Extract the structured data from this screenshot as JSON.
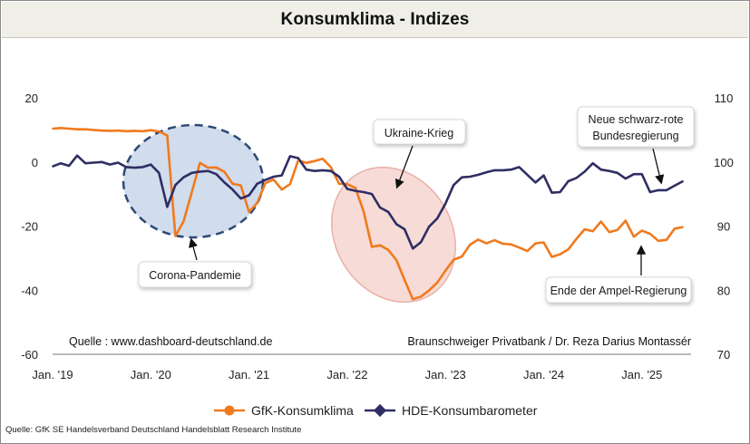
{
  "title": "Konsumklima - Indizes",
  "colors": {
    "gfk": "#f07a1e",
    "hde": "#2f2e63",
    "circle_fill": "#c9d6ea",
    "circle_stroke": "#2c4a75",
    "oval_fill": "#f4cfc8",
    "oval_stroke": "#e8b2aa"
  },
  "chart_data": {
    "type": "line",
    "x_tick_labels": [
      "Jan. '19",
      "Jan. '20",
      "Jan. '21",
      "Jan. '22",
      "Jan. '23",
      "Jan. '24",
      "Jan. '25"
    ],
    "x_range": [
      2019.0,
      2025.5
    ],
    "y_left": {
      "ticks": [
        "20",
        "0",
        "-20",
        "-40",
        "-60"
      ],
      "range": [
        -60,
        20
      ]
    },
    "y_right": {
      "ticks": [
        "110",
        "100",
        "90",
        "80",
        "70"
      ],
      "range": [
        70,
        110
      ]
    },
    "grid": false,
    "legend": "bottom",
    "series": [
      {
        "name": "GfK-Konsumklima",
        "axis": "left",
        "x": [
          2019.0,
          2019.083,
          2019.167,
          2019.25,
          2019.333,
          2019.417,
          2019.5,
          2019.583,
          2019.667,
          2019.75,
          2019.833,
          2019.917,
          2020.0,
          2020.083,
          2020.167,
          2020.25,
          2020.333,
          2020.417,
          2020.5,
          2020.583,
          2020.667,
          2020.75,
          2020.833,
          2020.917,
          2021.0,
          2021.083,
          2021.167,
          2021.25,
          2021.333,
          2021.417,
          2021.5,
          2021.583,
          2021.667,
          2021.75,
          2021.833,
          2021.917,
          2022.0,
          2022.083,
          2022.167,
          2022.25,
          2022.333,
          2022.417,
          2022.5,
          2022.583,
          2022.667,
          2022.75,
          2022.833,
          2022.917,
          2023.0,
          2023.083,
          2023.167,
          2023.25,
          2023.333,
          2023.417,
          2023.5,
          2023.583,
          2023.667,
          2023.75,
          2023.833,
          2023.917,
          2024.0,
          2024.083,
          2024.167,
          2024.25,
          2024.333,
          2024.417,
          2024.5,
          2024.583,
          2024.667,
          2024.75,
          2024.833,
          2024.917,
          2025.0,
          2025.083,
          2025.167,
          2025.25,
          2025.333,
          2025.417
        ],
        "y": [
          10.4,
          10.6,
          10.4,
          10.2,
          10.2,
          10.0,
          9.8,
          9.7,
          9.8,
          9.6,
          9.7,
          9.6,
          9.9,
          9.5,
          8.3,
          -23.1,
          -18.6,
          -9.4,
          -0.3,
          -1.8,
          -1.7,
          -3.1,
          -6.8,
          -7.3,
          -15.6,
          -12.8,
          -6.6,
          -5.5,
          -8.6,
          -6.9,
          0.5,
          -0.3,
          0.3,
          1.0,
          -1.6,
          -6.8,
          -6.9,
          -8.1,
          -15.5,
          -26.5,
          -26.0,
          -27.4,
          -30.6,
          -36.8,
          -42.8,
          -42.0,
          -40.1,
          -37.6,
          -33.9,
          -30.5,
          -29.5,
          -25.8,
          -24.2,
          -25.4,
          -24.4,
          -25.5,
          -25.7,
          -26.7,
          -27.8,
          -25.4,
          -25.1,
          -29.6,
          -28.8,
          -27.3,
          -24.0,
          -21.0,
          -21.6,
          -18.6,
          -21.9,
          -21.2,
          -18.3,
          -23.3,
          -21.4,
          -22.4,
          -24.6,
          -24.3,
          -20.8,
          -20.3
        ]
      },
      {
        "name": "HDE-Konsumbarometer",
        "axis": "right",
        "x": [
          2019.0,
          2019.083,
          2019.167,
          2019.25,
          2019.333,
          2019.417,
          2019.5,
          2019.583,
          2019.667,
          2019.75,
          2019.833,
          2019.917,
          2020.0,
          2020.083,
          2020.167,
          2020.25,
          2020.333,
          2020.417,
          2020.5,
          2020.583,
          2020.667,
          2020.75,
          2020.833,
          2020.917,
          2021.0,
          2021.083,
          2021.167,
          2021.25,
          2021.333,
          2021.417,
          2021.5,
          2021.583,
          2021.667,
          2021.75,
          2021.833,
          2021.917,
          2022.0,
          2022.083,
          2022.167,
          2022.25,
          2022.333,
          2022.417,
          2022.5,
          2022.583,
          2022.667,
          2022.75,
          2022.833,
          2022.917,
          2023.0,
          2023.083,
          2023.167,
          2023.25,
          2023.333,
          2023.417,
          2023.5,
          2023.583,
          2023.667,
          2023.75,
          2023.833,
          2023.917,
          2024.0,
          2024.083,
          2024.167,
          2024.25,
          2024.333,
          2024.417,
          2024.5,
          2024.583,
          2024.667,
          2024.75,
          2024.833,
          2024.917,
          2025.0,
          2025.083,
          2025.167,
          2025.25,
          2025.333,
          2025.417
        ],
        "y": [
          99.3,
          99.8,
          99.4,
          101.0,
          99.8,
          99.9,
          100.0,
          99.6,
          99.9,
          99.2,
          99.1,
          99.2,
          99.6,
          98.3,
          93.0,
          96.4,
          97.6,
          98.3,
          98.5,
          98.6,
          98.1,
          96.8,
          95.7,
          94.3,
          94.8,
          96.6,
          97.2,
          97.7,
          97.9,
          100.9,
          100.6,
          98.8,
          98.6,
          98.7,
          98.6,
          97.7,
          95.8,
          95.5,
          95.3,
          95.0,
          92.9,
          92.2,
          90.3,
          89.5,
          86.5,
          87.5,
          89.9,
          91.2,
          93.5,
          96.4,
          97.6,
          97.7,
          98.0,
          98.4,
          98.7,
          98.7,
          98.8,
          99.2,
          98.0,
          96.8,
          97.9,
          95.2,
          95.3,
          97.0,
          97.5,
          98.5,
          99.8,
          98.8,
          98.6,
          98.3,
          97.4,
          98.1,
          98.1,
          95.3,
          95.6,
          95.6,
          96.3,
          97.0
        ]
      }
    ]
  },
  "annotations": {
    "corona": "Corona-Pandemie",
    "ukraine": "Ukraine-Krieg",
    "neue_regierung_line1": "Neue schwarz-rote",
    "neue_regierung_line2": "Bundesregierung",
    "ampel_ende": "Ende der Ampel-Regierung",
    "quelle_left": "Quelle : www.dashboard-deutschland.de",
    "quelle_right": "Braunschweiger Privatbank / Dr. Reza Darius Montassér"
  },
  "legend": {
    "gfk": "GfK-Konsumklima",
    "hde": "HDE-Konsumbarometer"
  },
  "footer_source": "Quelle: GfK SE Handelsverband Deutschland Handelsblatt Research Institute"
}
